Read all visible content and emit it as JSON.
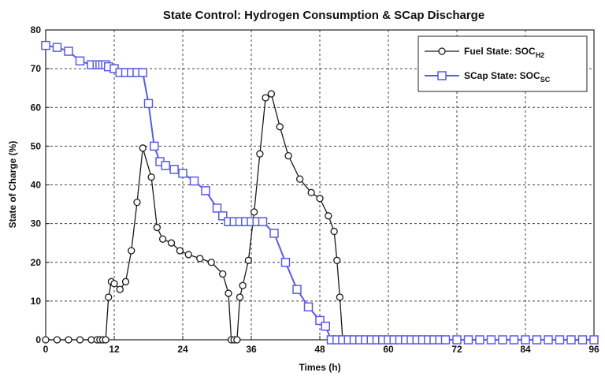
{
  "chart_data": {
    "type": "line",
    "title": "State Control: Hydrogen Consumption & SCap Discharge",
    "xlabel": "Times (h)",
    "ylabel": "State of Charge (%)",
    "xlim": [
      0,
      96
    ],
    "ylim": [
      0,
      80
    ],
    "xticks": [
      0,
      12,
      24,
      36,
      48,
      60,
      72,
      84,
      96
    ],
    "yticks": [
      0,
      10,
      20,
      30,
      40,
      50,
      60,
      70,
      80
    ],
    "grid": true,
    "legend_position": "top-right",
    "series": [
      {
        "name": "Fuel State: SOC",
        "name_subscript": "H2",
        "color": "#1a1a1a",
        "marker": "circle",
        "x": [
          0,
          2,
          4,
          6,
          8,
          9,
          9.5,
          10,
          10.5,
          11,
          11.5,
          12,
          13,
          14,
          15,
          16,
          17,
          18.5,
          19.5,
          20.5,
          22,
          23.5,
          25,
          27,
          29,
          31,
          32,
          32.5,
          33,
          33.5,
          34,
          34.5,
          35.5,
          36.5,
          37.5,
          38.5,
          39.5,
          41,
          42.5,
          44.5,
          46.5,
          48,
          49.5,
          50.5,
          51,
          51.5,
          52,
          52.5
        ],
        "y": [
          0,
          0,
          0,
          0,
          0,
          0,
          0,
          0,
          0,
          11,
          15,
          14.5,
          13,
          15,
          23,
          35.5,
          49.5,
          42,
          29,
          26,
          25,
          23,
          22,
          21,
          20,
          17,
          12,
          0,
          0,
          0,
          11,
          14,
          20.5,
          33,
          48,
          62.5,
          63.5,
          55,
          47.5,
          41.5,
          38,
          36.5,
          32,
          28,
          20.5,
          11,
          0,
          0
        ]
      },
      {
        "name": "SCap State: SOC",
        "name_subscript": "SC",
        "color": "#5a5ae6",
        "marker": "square",
        "x": [
          0,
          2,
          4,
          6,
          8,
          9,
          9.5,
          10,
          10.5,
          11,
          12,
          13,
          14,
          15,
          16,
          17,
          18,
          19,
          20,
          21,
          22.5,
          24,
          26,
          28,
          30,
          31,
          32,
          33,
          34,
          35,
          36,
          37,
          38,
          40,
          42,
          44,
          46,
          48,
          49,
          50,
          51,
          52,
          53,
          54,
          55,
          56,
          57,
          58,
          59,
          60,
          61,
          62,
          63,
          64,
          65,
          66,
          67,
          68,
          69,
          70,
          72,
          74,
          76,
          78,
          80,
          82,
          84,
          86,
          88,
          90,
          92,
          94,
          96
        ],
        "y": [
          76,
          75.5,
          74.5,
          72,
          71,
          71,
          71,
          71,
          71,
          70.5,
          70,
          69,
          69,
          69,
          69,
          69,
          61,
          50,
          46,
          45,
          44,
          43,
          41,
          38.5,
          34,
          32,
          30.5,
          30.5,
          30.5,
          30.5,
          30.5,
          30.5,
          30.5,
          27.5,
          20,
          13,
          8.5,
          5,
          3.5,
          0,
          0,
          0,
          0,
          0,
          0,
          0,
          0,
          0,
          0,
          0,
          0,
          0,
          0,
          0,
          0,
          0,
          0,
          0,
          0,
          0,
          0,
          0,
          0,
          0,
          0,
          0,
          0,
          0,
          0,
          0,
          0,
          0,
          0
        ]
      }
    ]
  }
}
